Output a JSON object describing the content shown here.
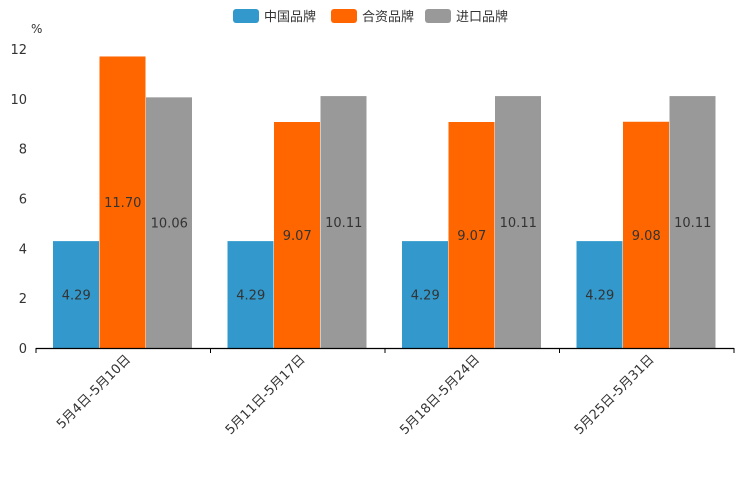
{
  "chart_data": {
    "type": "bar",
    "title": "",
    "xlabel": "",
    "ylabel": "%",
    "ylim": [
      0,
      12
    ],
    "yticks": [
      0,
      2,
      4,
      6,
      8,
      10,
      12
    ],
    "grid": false,
    "legend_position": "top-center",
    "categories": [
      "5月4日-5月10日",
      "5月11日-5月17日",
      "5月18日-5月24日",
      "5月25日-5月31日"
    ],
    "series": [
      {
        "name": "中国品牌",
        "color": "#3399cc",
        "values": [
          4.29,
          4.29,
          4.29,
          4.29
        ]
      },
      {
        "name": "合资品牌",
        "color": "#ff6600",
        "values": [
          11.7,
          9.07,
          9.07,
          9.08
        ]
      },
      {
        "name": "进口品牌",
        "color": "#999999",
        "values": [
          10.06,
          10.11,
          10.11,
          10.11
        ]
      }
    ],
    "data_labels": [
      [
        "4.29",
        "4.29",
        "4.29",
        "4.29"
      ],
      [
        "11.70",
        "9.07",
        "9.07",
        "9.08"
      ],
      [
        "10.06",
        "10.11",
        "10.11",
        "10.11"
      ]
    ]
  }
}
